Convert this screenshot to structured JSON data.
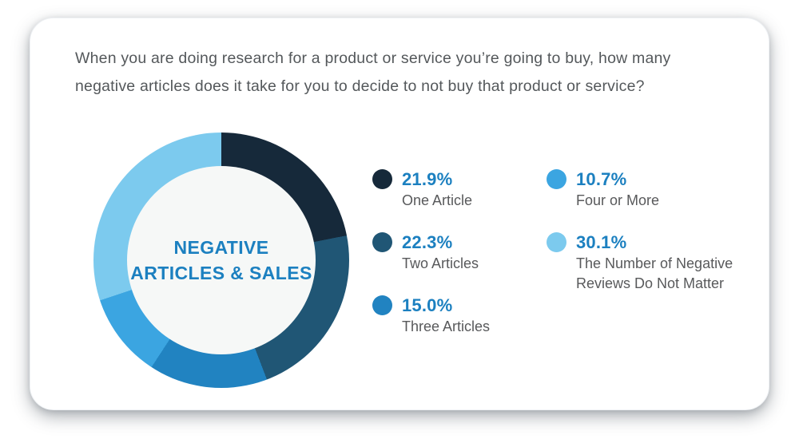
{
  "question": {
    "lines": [
      "When you are doing research for a product or service you’re going to buy, how many",
      "negative articles does it take for you to decide to not buy that product or service?"
    ]
  },
  "chart_data": {
    "type": "pie",
    "variant": "donut",
    "title": "Negative Articles & Sales",
    "center_label": [
      "NEGATIVE",
      "ARTICLES & SALES"
    ],
    "start_angle_deg": 0,
    "direction": "clockwise",
    "categories": [
      "One Article",
      "Two Articles",
      "Three Articles",
      "Four or More",
      "The Number of Negative Reviews Do Not Matter"
    ],
    "values": [
      21.9,
      22.3,
      15.0,
      10.7,
      30.1
    ],
    "slices": [
      {
        "label": "One Article",
        "value": 21.9,
        "pct_label": "21.9%",
        "color": "#16293a"
      },
      {
        "label": "Two Articles",
        "value": 22.3,
        "pct_label": "22.3%",
        "color": "#205675"
      },
      {
        "label": "Three Articles",
        "value": 15.0,
        "pct_label": "15.0%",
        "color": "#2183c1"
      },
      {
        "label": "Four or More",
        "value": 10.7,
        "pct_label": "10.7%",
        "color": "#3ba5e1"
      },
      {
        "label": "The Number of Negative Reviews Do Not Matter",
        "value": 30.1,
        "pct_label": "30.1%",
        "color": "#7ccaee"
      }
    ],
    "legend_position": "right",
    "legend_columns": [
      [
        0,
        1,
        2
      ],
      [
        3,
        4
      ]
    ],
    "hole_color": "#f6f8f7",
    "accent_color": "#1c80c0",
    "text_color": "#54585b"
  }
}
